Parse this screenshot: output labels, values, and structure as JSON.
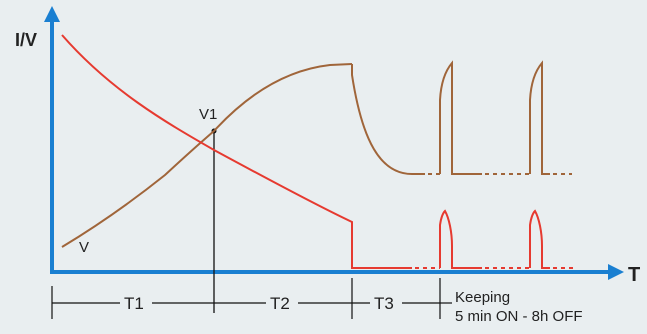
{
  "diagram": {
    "y_axis_label": "I/V",
    "x_axis_label": "T",
    "curve_label_v": "V",
    "point_label_v1": "V1",
    "phases": {
      "t1": "T1",
      "t2": "T2",
      "t3": "T3",
      "keeping_line1": "Keeping",
      "keeping_line2": "5 min ON - 8h OFF"
    },
    "colors": {
      "axis": "#1a7fd1",
      "voltage_curve": "#a0653a",
      "current_curve": "#e63a30",
      "guide": "#111111",
      "background": "#e9eef0"
    }
  }
}
